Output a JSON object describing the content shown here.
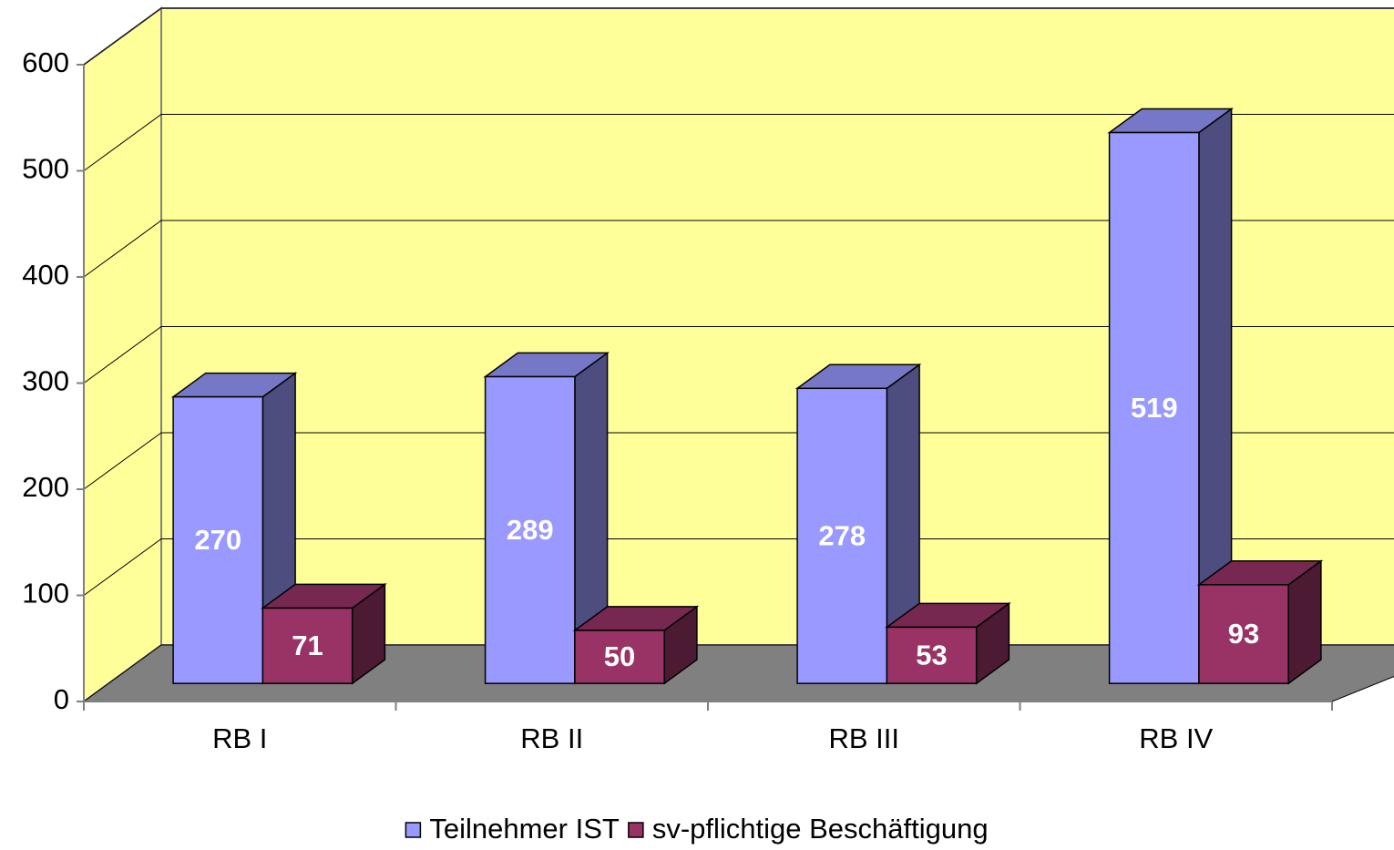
{
  "chart_data": {
    "type": "bar3d",
    "categories": [
      "RB I",
      "RB II",
      "RB III",
      "RB IV"
    ],
    "series": [
      {
        "name": "Teilnehmer IST",
        "color": "#9999ff",
        "values": [
          270,
          289,
          278,
          519
        ]
      },
      {
        "name": "sv-pflichtige Beschäftigung",
        "color": "#993366",
        "values": [
          71,
          50,
          53,
          93
        ]
      }
    ],
    "ylim": [
      0,
      600
    ],
    "yticks": [
      0,
      100,
      200,
      300,
      400,
      500,
      600
    ],
    "grid": true,
    "legend": "bottom",
    "wall_color": "#ffff99",
    "floor_color": "#808080"
  }
}
